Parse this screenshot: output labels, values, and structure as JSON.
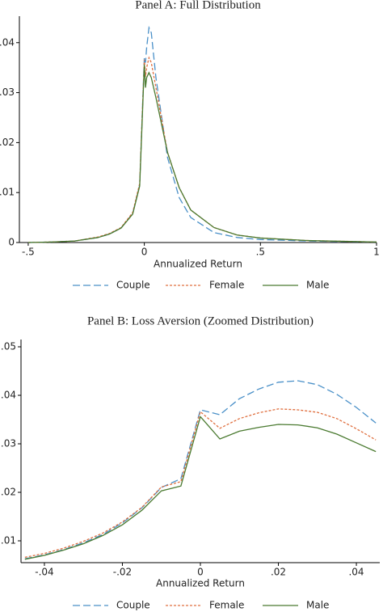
{
  "chart_data": [
    {
      "type": "line",
      "title": "Panel A: Full Distribution",
      "xlabel": "Annualized Return",
      "x": [
        -0.5,
        -0.4,
        -0.3,
        -0.2,
        -0.15,
        -0.1,
        -0.05,
        -0.02,
        0,
        0.005,
        0.01,
        0.02,
        0.03,
        0.05,
        0.1,
        0.15,
        0.2,
        0.3,
        0.4,
        0.5,
        0.7,
        1.0
      ],
      "series": [
        {
          "name": "Couple",
          "color": "#4a90c8",
          "style": "dashed",
          "values": [
            0,
            0.0001,
            0.0003,
            0.001,
            0.0017,
            0.0029,
            0.0058,
            0.0115,
            0.037,
            0.036,
            0.039,
            0.043,
            0.042,
            0.033,
            0.017,
            0.009,
            0.005,
            0.002,
            0.001,
            0.0006,
            0.0003,
            0.0001
          ]
        },
        {
          "name": "Female",
          "color": "#e07040",
          "style": "dotted",
          "values": [
            0,
            0.0001,
            0.0003,
            0.0011,
            0.0018,
            0.003,
            0.006,
            0.0118,
            0.0366,
            0.0332,
            0.035,
            0.037,
            0.036,
            0.031,
            0.018,
            0.011,
            0.0065,
            0.003,
            0.0015,
            0.0009,
            0.0004,
            0.0001
          ]
        },
        {
          "name": "Male",
          "color": "#4a7a30",
          "style": "solid",
          "values": [
            0,
            0.0001,
            0.0003,
            0.001,
            0.0017,
            0.0029,
            0.0057,
            0.0113,
            0.0356,
            0.031,
            0.033,
            0.034,
            0.033,
            0.029,
            0.018,
            0.011,
            0.0065,
            0.003,
            0.0015,
            0.0009,
            0.0004,
            0.0001
          ]
        }
      ],
      "xlim": [
        -0.538,
        1.0
      ],
      "ylim": [
        0,
        0.0453
      ],
      "xticks": [
        {
          "value": -0.5,
          "label": "-.5"
        },
        0,
        {
          "value": 0.5,
          "label": ".5"
        },
        1
      ],
      "yticks": [
        0,
        {
          "value": 0.01,
          "label": ".01"
        },
        {
          "value": 0.02,
          "label": ".02"
        },
        {
          "value": 0.03,
          "label": ".03"
        },
        {
          "value": 0.04,
          "label": ".04"
        }
      ]
    },
    {
      "type": "line",
      "title": "Panel B: Loss Aversion (Zoomed Distribution)",
      "xlabel": "Annualized Return",
      "x": [
        -0.045,
        -0.04,
        -0.035,
        -0.03,
        -0.025,
        -0.02,
        -0.015,
        -0.01,
        -0.005,
        0,
        0.005,
        0.01,
        0.015,
        0.02,
        0.025,
        0.03,
        0.035,
        0.04,
        0.045
      ],
      "series": [
        {
          "name": "Couple",
          "color": "#4a90c8",
          "style": "dashed",
          "values": [
            0.0063,
            0.0071,
            0.0082,
            0.0096,
            0.0113,
            0.0137,
            0.0168,
            0.021,
            0.0228,
            0.037,
            0.036,
            0.0393,
            0.0413,
            0.0427,
            0.043,
            0.0422,
            0.0402,
            0.0375,
            0.0343
          ]
        },
        {
          "name": "Female",
          "color": "#e07040",
          "style": "dotted",
          "values": [
            0.0066,
            0.0074,
            0.0085,
            0.0099,
            0.0116,
            0.0139,
            0.0169,
            0.0211,
            0.0222,
            0.0366,
            0.0332,
            0.0352,
            0.0364,
            0.0372,
            0.037,
            0.0365,
            0.0352,
            0.0331,
            0.0308
          ]
        },
        {
          "name": "Male",
          "color": "#4a7a30",
          "style": "solid",
          "values": [
            0.0062,
            0.007,
            0.0081,
            0.0094,
            0.0111,
            0.0133,
            0.0163,
            0.0203,
            0.0213,
            0.0356,
            0.031,
            0.0326,
            0.0334,
            0.034,
            0.0339,
            0.0333,
            0.032,
            0.0302,
            0.0284
          ]
        }
      ],
      "xlim": [
        -0.046,
        0.046
      ],
      "ylim": [
        0.0055,
        0.0515
      ],
      "xticks": [
        {
          "value": -0.04,
          "label": "-.04"
        },
        {
          "value": -0.02,
          "label": "-.02"
        },
        0,
        {
          "value": 0.02,
          "label": ".02"
        },
        {
          "value": 0.04,
          "label": ".04"
        }
      ],
      "yticks": [
        {
          "value": 0.01,
          "label": ".01"
        },
        {
          "value": 0.02,
          "label": ".02"
        },
        {
          "value": 0.03,
          "label": ".03"
        },
        {
          "value": 0.04,
          "label": ".04"
        },
        {
          "value": 0.05,
          "label": ".05"
        }
      ]
    }
  ]
}
